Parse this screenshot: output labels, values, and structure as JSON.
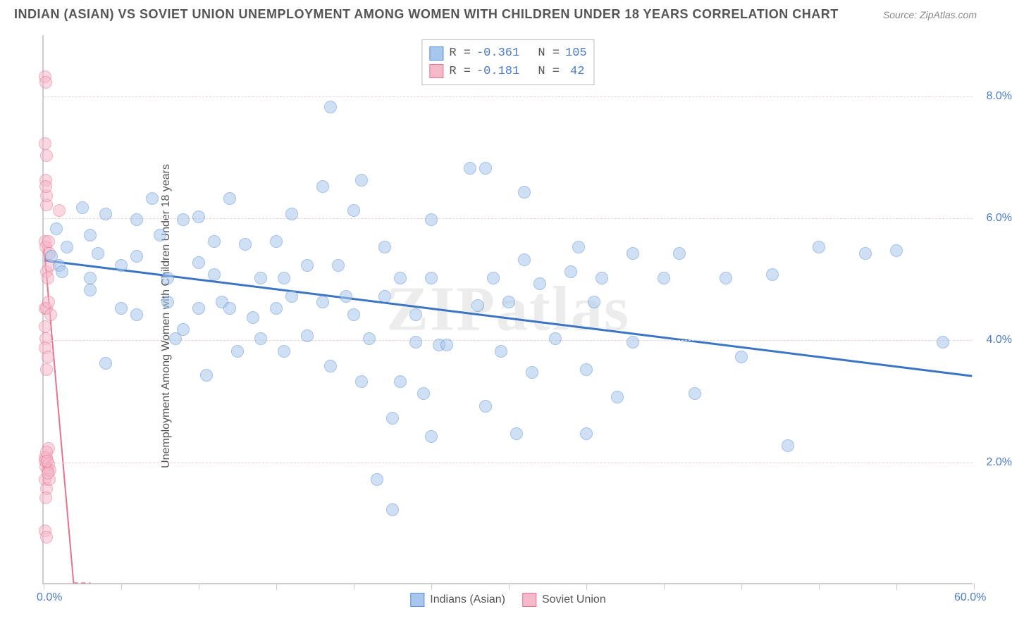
{
  "title": "INDIAN (ASIAN) VS SOVIET UNION UNEMPLOYMENT AMONG WOMEN WITH CHILDREN UNDER 18 YEARS CORRELATION CHART",
  "source": "Source: ZipAtlas.com",
  "watermark": "ZIPatlas",
  "y_axis_title": "Unemployment Among Women with Children Under 18 years",
  "chart": {
    "type": "scatter",
    "xlim": [
      0,
      60
    ],
    "ylim": [
      0,
      9
    ],
    "x_ticks_minor": [
      0,
      5,
      10,
      15,
      20,
      25,
      30,
      35,
      40,
      45,
      50,
      55,
      60
    ],
    "x_labels": [
      {
        "val": 0,
        "text": "0.0%"
      },
      {
        "val": 60,
        "text": "60.0%"
      }
    ],
    "y_labels": [
      {
        "val": 2,
        "text": "2.0%"
      },
      {
        "val": 4,
        "text": "4.0%"
      },
      {
        "val": 6,
        "text": "6.0%"
      },
      {
        "val": 8,
        "text": "8.0%"
      }
    ],
    "grid_y": [
      2,
      4,
      6,
      8
    ],
    "grid_color": "#e8d4d4",
    "axis_color": "#cccccc",
    "background_color": "#ffffff",
    "marker_radius": 9,
    "marker_opacity": 0.55,
    "marker_stroke_opacity": 0.9
  },
  "series": {
    "indian": {
      "label": "Indians (Asian)",
      "fill": "#a9c6ec",
      "stroke": "#5a8fd6",
      "line_color": "#3b74c4",
      "line_width": 3,
      "trend": {
        "x1": 0,
        "y1": 5.3,
        "x2": 60,
        "y2": 3.4
      },
      "R": "-0.361",
      "N": "105",
      "points": [
        [
          0.5,
          5.35
        ],
        [
          0.8,
          5.8
        ],
        [
          1.0,
          5.2
        ],
        [
          1.2,
          5.1
        ],
        [
          1.5,
          5.5
        ],
        [
          2.5,
          6.15
        ],
        [
          3,
          5.7
        ],
        [
          3,
          5.0
        ],
        [
          3.5,
          5.4
        ],
        [
          3,
          4.8
        ],
        [
          4,
          6.05
        ],
        [
          4,
          3.6
        ],
        [
          5,
          5.2
        ],
        [
          5,
          4.5
        ],
        [
          6,
          5.35
        ],
        [
          6,
          5.95
        ],
        [
          6,
          4.4
        ],
        [
          7,
          6.3
        ],
        [
          7.5,
          5.7
        ],
        [
          8,
          5.0
        ],
        [
          8,
          4.6
        ],
        [
          8.5,
          4.0
        ],
        [
          9,
          5.95
        ],
        [
          9,
          4.15
        ],
        [
          10,
          6.0
        ],
        [
          10,
          5.25
        ],
        [
          10,
          4.5
        ],
        [
          10.5,
          3.4
        ],
        [
          11,
          5.6
        ],
        [
          11,
          5.05
        ],
        [
          11.5,
          4.6
        ],
        [
          12,
          6.3
        ],
        [
          12,
          4.5
        ],
        [
          12.5,
          3.8
        ],
        [
          13,
          5.55
        ],
        [
          13.5,
          4.35
        ],
        [
          14,
          5.0
        ],
        [
          14,
          4.0
        ],
        [
          15,
          5.6
        ],
        [
          15,
          4.5
        ],
        [
          15.5,
          5.0
        ],
        [
          15.5,
          3.8
        ],
        [
          16,
          6.05
        ],
        [
          16,
          4.7
        ],
        [
          17,
          5.2
        ],
        [
          17,
          4.05
        ],
        [
          18,
          6.5
        ],
        [
          18,
          4.6
        ],
        [
          18.5,
          3.55
        ],
        [
          18.5,
          7.8
        ],
        [
          19,
          5.2
        ],
        [
          19.5,
          4.7
        ],
        [
          20,
          6.1
        ],
        [
          20,
          4.4
        ],
        [
          20.5,
          3.3
        ],
        [
          20.5,
          6.6
        ],
        [
          21.5,
          1.7
        ],
        [
          21,
          4.0
        ],
        [
          22,
          5.5
        ],
        [
          22,
          4.7
        ],
        [
          22.5,
          1.2
        ],
        [
          23,
          5.0
        ],
        [
          23,
          3.3
        ],
        [
          22.5,
          2.7
        ],
        [
          24,
          4.4
        ],
        [
          24,
          3.95
        ],
        [
          24.5,
          3.1
        ],
        [
          25,
          5.95
        ],
        [
          25,
          5.0
        ],
        [
          25,
          2.4
        ],
        [
          25.5,
          3.9
        ],
        [
          26,
          3.9
        ],
        [
          27.5,
          6.8
        ],
        [
          28,
          4.55
        ],
        [
          28.5,
          2.9
        ],
        [
          28.5,
          6.8
        ],
        [
          29,
          5.0
        ],
        [
          29.5,
          3.8
        ],
        [
          30,
          4.6
        ],
        [
          30.5,
          2.45
        ],
        [
          31,
          6.4
        ],
        [
          31,
          5.3
        ],
        [
          31.5,
          3.45
        ],
        [
          32,
          4.9
        ],
        [
          33,
          4.0
        ],
        [
          34,
          5.1
        ],
        [
          34.5,
          5.5
        ],
        [
          35,
          3.5
        ],
        [
          35,
          2.45
        ],
        [
          35.5,
          4.6
        ],
        [
          36,
          5.0
        ],
        [
          37,
          3.05
        ],
        [
          38,
          5.4
        ],
        [
          38,
          3.95
        ],
        [
          40,
          5.0
        ],
        [
          41,
          5.4
        ],
        [
          42,
          3.1
        ],
        [
          44,
          5.0
        ],
        [
          45,
          3.7
        ],
        [
          47,
          5.05
        ],
        [
          48,
          2.25
        ],
        [
          50,
          5.5
        ],
        [
          53,
          5.4
        ],
        [
          55,
          5.45
        ],
        [
          58,
          3.95
        ]
      ]
    },
    "soviet": {
      "label": "Soviet Union",
      "fill": "#f5b9ca",
      "stroke": "#e5738f",
      "line_color": "#e5738f",
      "line_width": 2,
      "trend": {
        "x1": 0,
        "y1": 5.5,
        "x2": 1.9,
        "y2": 0
      },
      "trend_dashed_ext": {
        "x1": 1.9,
        "y1": 0,
        "x2": 3.0,
        "y2": -3.0
      },
      "R": "-0.181",
      "N": "42",
      "points": [
        [
          0.1,
          8.3
        ],
        [
          0.15,
          8.2
        ],
        [
          0.1,
          7.2
        ],
        [
          0.2,
          6.2
        ],
        [
          0.15,
          6.6
        ],
        [
          0.2,
          6.35
        ],
        [
          0.1,
          5.6
        ],
        [
          0.2,
          5.1
        ],
        [
          0.15,
          5.5
        ],
        [
          0.25,
          5.0
        ],
        [
          0.1,
          4.5
        ],
        [
          0.2,
          4.5
        ],
        [
          0.3,
          4.6
        ],
        [
          0.15,
          4.0
        ],
        [
          0.1,
          3.85
        ],
        [
          0.25,
          3.7
        ],
        [
          0.2,
          3.5
        ],
        [
          0.1,
          2.0
        ],
        [
          0.2,
          2.05
        ],
        [
          0.15,
          1.9
        ],
        [
          0.25,
          1.85
        ],
        [
          0.1,
          1.7
        ],
        [
          0.2,
          1.55
        ],
        [
          0.3,
          1.95
        ],
        [
          0.15,
          1.4
        ],
        [
          0.1,
          0.85
        ],
        [
          0.2,
          0.75
        ],
        [
          1.0,
          6.1
        ],
        [
          0.4,
          5.2
        ],
        [
          0.45,
          4.4
        ],
        [
          0.3,
          2.2
        ],
        [
          0.35,
          1.7
        ],
        [
          0.4,
          1.85
        ],
        [
          0.35,
          5.4
        ],
        [
          0.1,
          2.05
        ],
        [
          0.2,
          2.15
        ],
        [
          0.12,
          6.5
        ],
        [
          0.18,
          7.0
        ],
        [
          0.22,
          2.0
        ],
        [
          0.28,
          1.8
        ],
        [
          0.1,
          4.2
        ],
        [
          0.3,
          5.6
        ]
      ]
    }
  },
  "stats_box": {
    "r_prefix": "R =",
    "n_prefix": "N ="
  }
}
